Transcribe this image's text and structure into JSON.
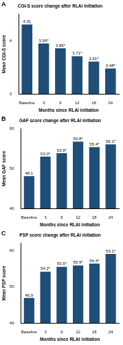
{
  "chart_data": [
    {
      "type": "bar",
      "panel_label": "A",
      "title": "CGI-S score change after RLAI initiation",
      "x_label": "Months since RLAI initiation",
      "y_label": "Mean CGI-S score",
      "categories": [
        "Baseline",
        "3",
        "6",
        "12",
        "18",
        "24"
      ],
      "values": [
        4.31,
        3.95,
        3.86,
        3.71,
        3.61,
        3.48
      ],
      "value_labels": [
        "4.31",
        "3.95*",
        "3.86*",
        "3.71*",
        "3.61*",
        "3.48*"
      ],
      "color": "#1f4e79",
      "ylim": [
        3,
        4.5
      ],
      "yticks": [
        3,
        4
      ],
      "grid": false,
      "data_labels": true
    },
    {
      "type": "bar",
      "panel_label": "B",
      "title": "GAF score change after RLAI initiation",
      "x_label": "Months since RLAI initiation",
      "y_label": "Mean GAF score",
      "categories": [
        "Baseline",
        "3",
        "6",
        "12",
        "18",
        "24"
      ],
      "values": [
        48.1,
        53.0,
        53.9,
        56.8,
        55.4,
        56.1
      ],
      "value_labels": [
        "48.1",
        "53.0*",
        "53.9*",
        "56.8*",
        "55.4*",
        "56.1*"
      ],
      "color": "#1f4e79",
      "ylim": [
        40,
        60
      ],
      "yticks": [
        40,
        50,
        60
      ],
      "grid": false,
      "data_labels": true
    },
    {
      "type": "bar",
      "panel_label": "C",
      "title": "PSP score change after RLAI initiation",
      "x_label": "Months since RLAI initiation",
      "y_label": "Mean PSP score",
      "categories": [
        "Baseline",
        "3",
        "6",
        "12",
        "18",
        "24"
      ],
      "values": [
        46.9,
        54.2,
        55.5,
        55.9,
        56.4,
        59.1
      ],
      "value_labels": [
        "46.9",
        "54.2*",
        "55.5*",
        "55.9*",
        "56.4*",
        "59.1*"
      ],
      "color": "#1f4e79",
      "ylim": [
        40,
        62
      ],
      "yticks": [
        40,
        50,
        60
      ],
      "grid": false,
      "data_labels": true
    }
  ]
}
